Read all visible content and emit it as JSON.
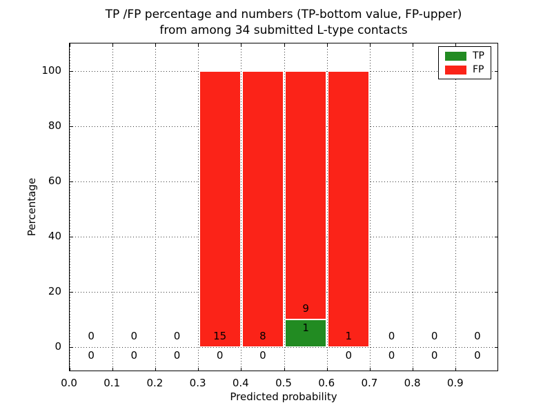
{
  "chart_data": {
    "type": "bar",
    "stacked": true,
    "title_lines": [
      "TP /FP percentage and numbers (TP-bottom value, FP-upper)",
      "from among 34 submitted L-type contacts"
    ],
    "xlabel": "Predicted probability",
    "ylabel": "Percentage",
    "xlim": [
      0.0,
      1.0
    ],
    "ylim": [
      -9,
      110
    ],
    "x_bin_edges": [
      0.0,
      0.1,
      0.2,
      0.3,
      0.4,
      0.5,
      0.6,
      0.7,
      0.8,
      0.9,
      1.0
    ],
    "x_ticks": [
      0.0,
      0.1,
      0.2,
      0.3,
      0.4,
      0.5,
      0.6,
      0.7,
      0.8,
      0.9
    ],
    "x_tick_labels": [
      "0.0",
      "0.1",
      "0.2",
      "0.3",
      "0.4",
      "0.5",
      "0.6",
      "0.7",
      "0.8",
      "0.9"
    ],
    "y_ticks": [
      0,
      20,
      40,
      60,
      80,
      100
    ],
    "y_tick_labels": [
      "0",
      "20",
      "40",
      "60",
      "80",
      "100"
    ],
    "grid": true,
    "grid_style": "dotted",
    "total_submitted": 34,
    "legend_position": "upper-right",
    "series": [
      {
        "name": "TP",
        "color": "#228b22",
        "counts": [
          0,
          0,
          0,
          0,
          0,
          1,
          0,
          0,
          0,
          0
        ],
        "pct_values": [
          0,
          0,
          0,
          0,
          0,
          10,
          0,
          0,
          0,
          0
        ]
      },
      {
        "name": "FP",
        "color": "#fb2318",
        "counts": [
          0,
          0,
          0,
          15,
          8,
          9,
          1,
          0,
          0,
          0
        ],
        "pct_values": [
          0,
          0,
          0,
          100,
          100,
          90,
          100,
          0,
          0,
          0
        ]
      }
    ]
  }
}
